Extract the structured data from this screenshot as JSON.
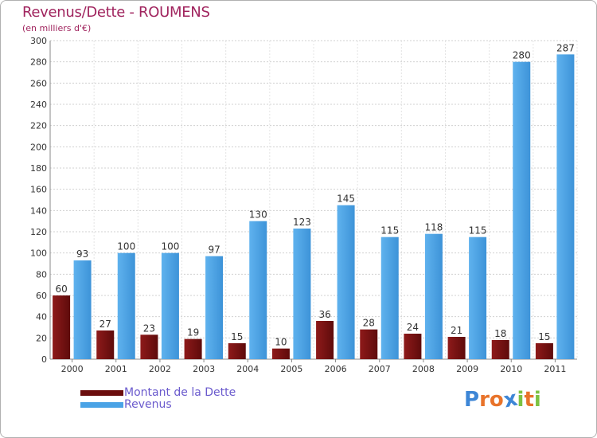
{
  "title": "Revenus/Dette - ROUMENS",
  "subtitle": "(en milliers d'€)",
  "chart_data": {
    "type": "bar",
    "title": "Revenus/Dette - ROUMENS",
    "subtitle": "(en milliers d'€)",
    "categories": [
      "2000",
      "2001",
      "2002",
      "2003",
      "2004",
      "2005",
      "2006",
      "2007",
      "2008",
      "2009",
      "2010",
      "2011"
    ],
    "series": [
      {
        "name": "Montant de la Dette",
        "color": "#7a1010",
        "values": [
          60,
          27,
          23,
          19,
          15,
          10,
          36,
          28,
          24,
          21,
          18,
          15
        ]
      },
      {
        "name": "Revenus",
        "color": "#4aa3e6",
        "values": [
          93,
          100,
          100,
          97,
          130,
          123,
          145,
          115,
          118,
          115,
          280,
          287
        ]
      }
    ],
    "ylim": [
      0,
      300
    ],
    "yticks": [
      0,
      20,
      40,
      60,
      80,
      100,
      120,
      140,
      160,
      180,
      200,
      220,
      240,
      260,
      280,
      300
    ],
    "grid": true,
    "legend": "bottom-left"
  },
  "legend": {
    "items": [
      {
        "label": "Montant de la Dette",
        "color": "#6b0d0d"
      },
      {
        "label": "Revenus",
        "color": "#4aa3e6"
      }
    ]
  },
  "logo": {
    "letters": [
      "P",
      "r",
      "o",
      "x",
      "i",
      "t",
      "i"
    ],
    "colors": [
      "#3d86d6",
      "#e8732a",
      "#e8732a",
      "#3d86d6",
      "#7cc242",
      "#e8732a",
      "#7cc242"
    ]
  }
}
